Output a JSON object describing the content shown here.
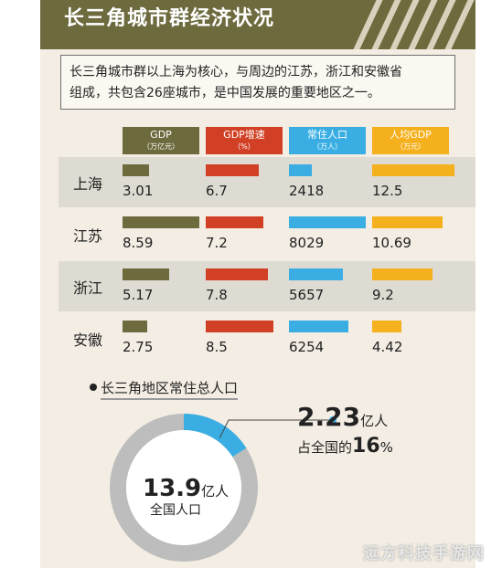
{
  "title": "长三角城市群经济状况",
  "intro": {
    "line1": "长三角城市群以上海为核心，与周边的江苏，浙江和安徽省",
    "line2": "组成，共包含26座城市，是中国发展的重要地区之一。"
  },
  "colors": {
    "gdp": "#6d6a3e",
    "growth": "#d14024",
    "population": "#3aaee3",
    "percapita": "#f5b01d",
    "ring": "#bdbdbd"
  },
  "chart_data": [
    {
      "type": "bar",
      "categories": [
        "上海",
        "江苏",
        "浙江",
        "安徽"
      ],
      "series": [
        {
          "name": "GDP",
          "unit": "（万亿元）",
          "values": [
            3.01,
            8.59,
            5.17,
            2.75
          ]
        },
        {
          "name": "GDP增速",
          "unit": "（%）",
          "values": [
            6.7,
            7.2,
            7.8,
            8.5
          ]
        },
        {
          "name": "常住人口",
          "unit": "（万人）",
          "values": [
            2418,
            8029,
            5657,
            6254
          ]
        },
        {
          "name": "人均GDP",
          "unit": "（万元）",
          "values": [
            12.5,
            10.69,
            9.2,
            4.42
          ]
        }
      ],
      "value_labels": [
        [
          "3.01",
          "6.7",
          "2418",
          "12.5"
        ],
        [
          "8.59",
          "7.2",
          "8029",
          "10.69"
        ],
        [
          "5.17",
          "7.8",
          "5657",
          "9.2"
        ],
        [
          "2.75",
          "8.5",
          "6254",
          "4.42"
        ]
      ]
    },
    {
      "type": "pie",
      "title": "长三角地区常住总人口",
      "share_percent": 16,
      "center_value": "13.9",
      "center_unit": "亿人",
      "center_label": "全国人口",
      "highlight_value": "2.23",
      "highlight_unit": "亿人",
      "highlight_text_pre": "占全国的",
      "highlight_pct": "16",
      "highlight_text_post": "%"
    }
  ],
  "watermark": "远方科技手游网"
}
